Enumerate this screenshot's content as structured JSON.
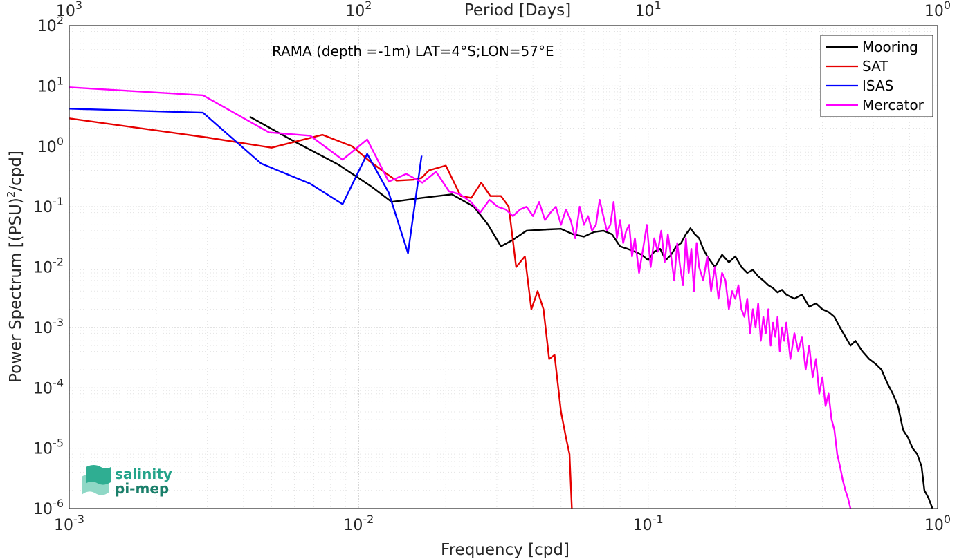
{
  "chart_data": {
    "type": "line",
    "title": "",
    "annotation": "RAMA (depth =-1m) LAT=4°S;LON=57°E",
    "xlabel": "Frequency [cpd]",
    "ylabel_main": "Power Spectrum [(PSU)",
    "ylabel_sup": "2",
    "ylabel_end": "/cpd]",
    "top_axis_label": "Period [Days]",
    "x_scale": "log",
    "y_scale": "log",
    "xlim": [
      0.001,
      1
    ],
    "ylim": [
      1e-06,
      100
    ],
    "grid": true,
    "legend_position": "top-right",
    "x_ticks": [
      {
        "value": 0.001,
        "base": "10",
        "exp": "-3"
      },
      {
        "value": 0.01,
        "base": "10",
        "exp": "-2"
      },
      {
        "value": 0.1,
        "base": "10",
        "exp": "-1"
      },
      {
        "value": 1,
        "base": "10",
        "exp": "0"
      }
    ],
    "y_ticks": [
      {
        "value": 1e-06,
        "base": "10",
        "exp": "-6"
      },
      {
        "value": 1e-05,
        "base": "10",
        "exp": "-5"
      },
      {
        "value": 0.0001,
        "base": "10",
        "exp": "-4"
      },
      {
        "value": 0.001,
        "base": "10",
        "exp": "-3"
      },
      {
        "value": 0.01,
        "base": "10",
        "exp": "-2"
      },
      {
        "value": 0.1,
        "base": "10",
        "exp": "-1"
      },
      {
        "value": 1,
        "base": "10",
        "exp": "0"
      },
      {
        "value": 10,
        "base": "10",
        "exp": "1"
      },
      {
        "value": 100,
        "base": "10",
        "exp": "2"
      }
    ],
    "top_ticks": [
      {
        "period": 1000,
        "base": "10",
        "exp": "3"
      },
      {
        "period": 100,
        "base": "10",
        "exp": "2"
      },
      {
        "period": 10,
        "base": "10",
        "exp": "1"
      },
      {
        "period": 1,
        "base": "10",
        "exp": "0"
      }
    ],
    "series": [
      {
        "name": "Mooring",
        "color": "#000000",
        "x": [
          0.0042,
          0.006,
          0.0085,
          0.011,
          0.013,
          0.0165,
          0.021,
          0.025,
          0.028,
          0.031,
          0.034,
          0.038,
          0.045,
          0.05,
          0.055,
          0.06,
          0.065,
          0.07,
          0.075,
          0.08,
          0.085,
          0.09,
          0.095,
          0.1,
          0.105,
          0.11,
          0.115,
          0.12,
          0.125,
          0.13,
          0.135,
          0.14,
          0.145,
          0.15,
          0.155,
          0.16,
          0.17,
          0.18,
          0.19,
          0.2,
          0.21,
          0.22,
          0.23,
          0.24,
          0.25,
          0.26,
          0.27,
          0.28,
          0.29,
          0.3,
          0.32,
          0.34,
          0.36,
          0.38,
          0.4,
          0.42,
          0.44,
          0.46,
          0.48,
          0.5,
          0.52,
          0.55,
          0.58,
          0.61,
          0.64,
          0.67,
          0.7,
          0.73,
          0.76,
          0.79,
          0.82,
          0.85,
          0.88,
          0.9,
          0.93,
          0.96
        ],
        "y": [
          3.1,
          1.2,
          0.5,
          0.22,
          0.12,
          0.14,
          0.16,
          0.1,
          0.05,
          0.022,
          0.028,
          0.04,
          0.042,
          0.043,
          0.035,
          0.032,
          0.038,
          0.04,
          0.035,
          0.022,
          0.02,
          0.018,
          0.016,
          0.013,
          0.018,
          0.02,
          0.013,
          0.016,
          0.022,
          0.025,
          0.035,
          0.044,
          0.035,
          0.03,
          0.02,
          0.015,
          0.01,
          0.016,
          0.012,
          0.015,
          0.01,
          0.008,
          0.009,
          0.007,
          0.006,
          0.005,
          0.0045,
          0.0038,
          0.0042,
          0.0035,
          0.003,
          0.0035,
          0.0022,
          0.0025,
          0.002,
          0.0018,
          0.0015,
          0.001,
          0.0007,
          0.0005,
          0.0006,
          0.0004,
          0.0003,
          0.00025,
          0.0002,
          0.00012,
          8e-05,
          5e-05,
          2e-05,
          1.5e-05,
          1e-05,
          8e-06,
          5e-06,
          2e-06,
          1.5e-06,
          1e-06
        ]
      },
      {
        "name": "SAT",
        "color": "#e60000",
        "x": [
          0.001,
          0.003,
          0.005,
          0.0075,
          0.0095,
          0.011,
          0.0125,
          0.0135,
          0.0155,
          0.0165,
          0.0175,
          0.02,
          0.0225,
          0.0245,
          0.0265,
          0.0285,
          0.031,
          0.033,
          0.035,
          0.0375,
          0.0395,
          0.0415,
          0.0435,
          0.0455,
          0.0475,
          0.05,
          0.052,
          0.0535,
          0.0545
        ],
        "y": [
          2.9,
          1.4,
          0.95,
          1.55,
          1.0,
          0.55,
          0.35,
          0.27,
          0.28,
          0.3,
          0.4,
          0.48,
          0.15,
          0.14,
          0.25,
          0.15,
          0.15,
          0.1,
          0.01,
          0.015,
          0.002,
          0.004,
          0.002,
          0.0003,
          0.00035,
          4e-05,
          1.5e-05,
          8e-06,
          1e-06
        ]
      },
      {
        "name": "ISAS",
        "color": "#0000ff",
        "x": [
          0.001,
          0.0029,
          0.0046,
          0.0068,
          0.0088,
          0.0107,
          0.0127,
          0.0148,
          0.0165
        ],
        "y": [
          4.2,
          3.6,
          0.52,
          0.24,
          0.11,
          0.75,
          0.17,
          0.017,
          0.7
        ]
      },
      {
        "name": "Mercator",
        "color": "#ff00ff",
        "x": [
          0.001,
          0.0029,
          0.0049,
          0.0068,
          0.0088,
          0.0107,
          0.0127,
          0.0146,
          0.0166,
          0.0185,
          0.0205,
          0.0224,
          0.0244,
          0.0263,
          0.0283,
          0.0302,
          0.0322,
          0.0341,
          0.0361,
          0.038,
          0.04,
          0.042,
          0.044,
          0.046,
          0.048,
          0.05,
          0.052,
          0.054,
          0.056,
          0.058,
          0.06,
          0.062,
          0.064,
          0.066,
          0.068,
          0.07,
          0.072,
          0.074,
          0.076,
          0.078,
          0.08,
          0.082,
          0.084,
          0.086,
          0.088,
          0.09,
          0.093,
          0.096,
          0.099,
          0.102,
          0.105,
          0.108,
          0.111,
          0.114,
          0.117,
          0.12,
          0.123,
          0.126,
          0.129,
          0.132,
          0.135,
          0.138,
          0.141,
          0.144,
          0.147,
          0.15,
          0.155,
          0.16,
          0.165,
          0.17,
          0.175,
          0.18,
          0.185,
          0.19,
          0.195,
          0.2,
          0.205,
          0.21,
          0.215,
          0.22,
          0.225,
          0.23,
          0.235,
          0.24,
          0.245,
          0.25,
          0.255,
          0.26,
          0.265,
          0.27,
          0.275,
          0.28,
          0.285,
          0.29,
          0.295,
          0.3,
          0.31,
          0.32,
          0.33,
          0.34,
          0.35,
          0.36,
          0.37,
          0.38,
          0.39,
          0.4,
          0.41,
          0.42,
          0.43,
          0.44,
          0.45,
          0.46,
          0.47,
          0.48,
          0.49,
          0.5
        ],
        "y": [
          9.5,
          7.0,
          1.7,
          1.5,
          0.6,
          1.3,
          0.26,
          0.35,
          0.25,
          0.38,
          0.18,
          0.16,
          0.12,
          0.08,
          0.13,
          0.1,
          0.09,
          0.07,
          0.09,
          0.1,
          0.07,
          0.12,
          0.06,
          0.08,
          0.1,
          0.05,
          0.09,
          0.06,
          0.03,
          0.1,
          0.05,
          0.07,
          0.04,
          0.05,
          0.13,
          0.07,
          0.04,
          0.05,
          0.12,
          0.03,
          0.06,
          0.025,
          0.04,
          0.05,
          0.015,
          0.03,
          0.008,
          0.02,
          0.05,
          0.01,
          0.03,
          0.018,
          0.04,
          0.012,
          0.035,
          0.015,
          0.006,
          0.025,
          0.01,
          0.005,
          0.03,
          0.008,
          0.02,
          0.004,
          0.025,
          0.01,
          0.006,
          0.015,
          0.004,
          0.01,
          0.003,
          0.008,
          0.006,
          0.002,
          0.004,
          0.003,
          0.005,
          0.002,
          0.0015,
          0.003,
          0.0008,
          0.002,
          0.001,
          0.0025,
          0.0006,
          0.0015,
          0.0008,
          0.002,
          0.0005,
          0.0012,
          0.0007,
          0.0015,
          0.0004,
          0.001,
          0.0006,
          0.0012,
          0.0003,
          0.0008,
          0.0004,
          0.0007,
          0.0002,
          0.0005,
          0.00015,
          0.0003,
          8e-05,
          0.00015,
          5e-05,
          8e-05,
          3e-05,
          2e-05,
          8e-06,
          5e-06,
          3e-06,
          2e-06,
          1.5e-06,
          1e-06
        ]
      }
    ]
  },
  "logo": {
    "line1": "salinity",
    "line2": "pi-mep"
  }
}
